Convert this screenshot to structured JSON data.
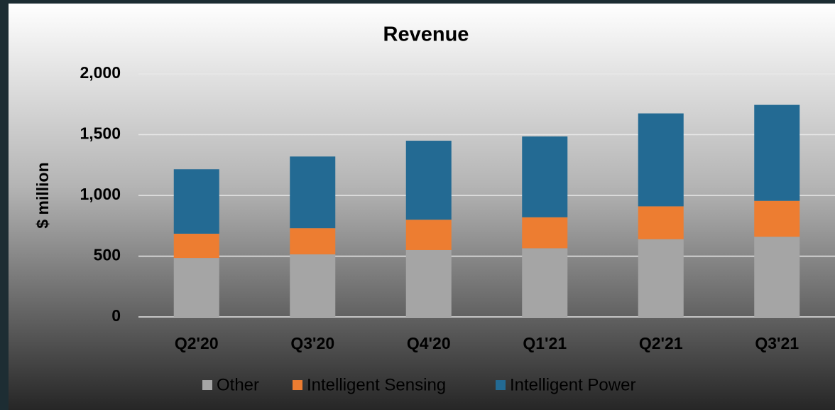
{
  "chart_data": {
    "type": "bar",
    "stacked": true,
    "title": "Revenue",
    "y_label": "$ million",
    "categories": [
      "Q2'20",
      "Q3'20",
      "Q4'20",
      "Q1'21",
      "Q2'21",
      "Q3'21"
    ],
    "series": [
      {
        "name": "Other",
        "color": "#a5a5a5",
        "values": [
          485,
          515,
          550,
          565,
          640,
          660
        ]
      },
      {
        "name": "Intelligent Sensing",
        "color": "#ed7d31",
        "values": [
          200,
          215,
          250,
          255,
          270,
          295
        ]
      },
      {
        "name": "Intelligent Power",
        "color": "#236a93",
        "values": [
          530,
          590,
          650,
          665,
          765,
          790
        ]
      }
    ],
    "ylim": [
      0,
      2000
    ],
    "yticks": [
      0,
      {
        "value": 500,
        "label": "500"
      },
      {
        "value": 1000,
        "label": "1,000"
      },
      {
        "value": 1500,
        "label": "1,500"
      },
      {
        "value": 2000,
        "label": "2,000"
      }
    ],
    "grid": true,
    "legend": "bottom"
  }
}
